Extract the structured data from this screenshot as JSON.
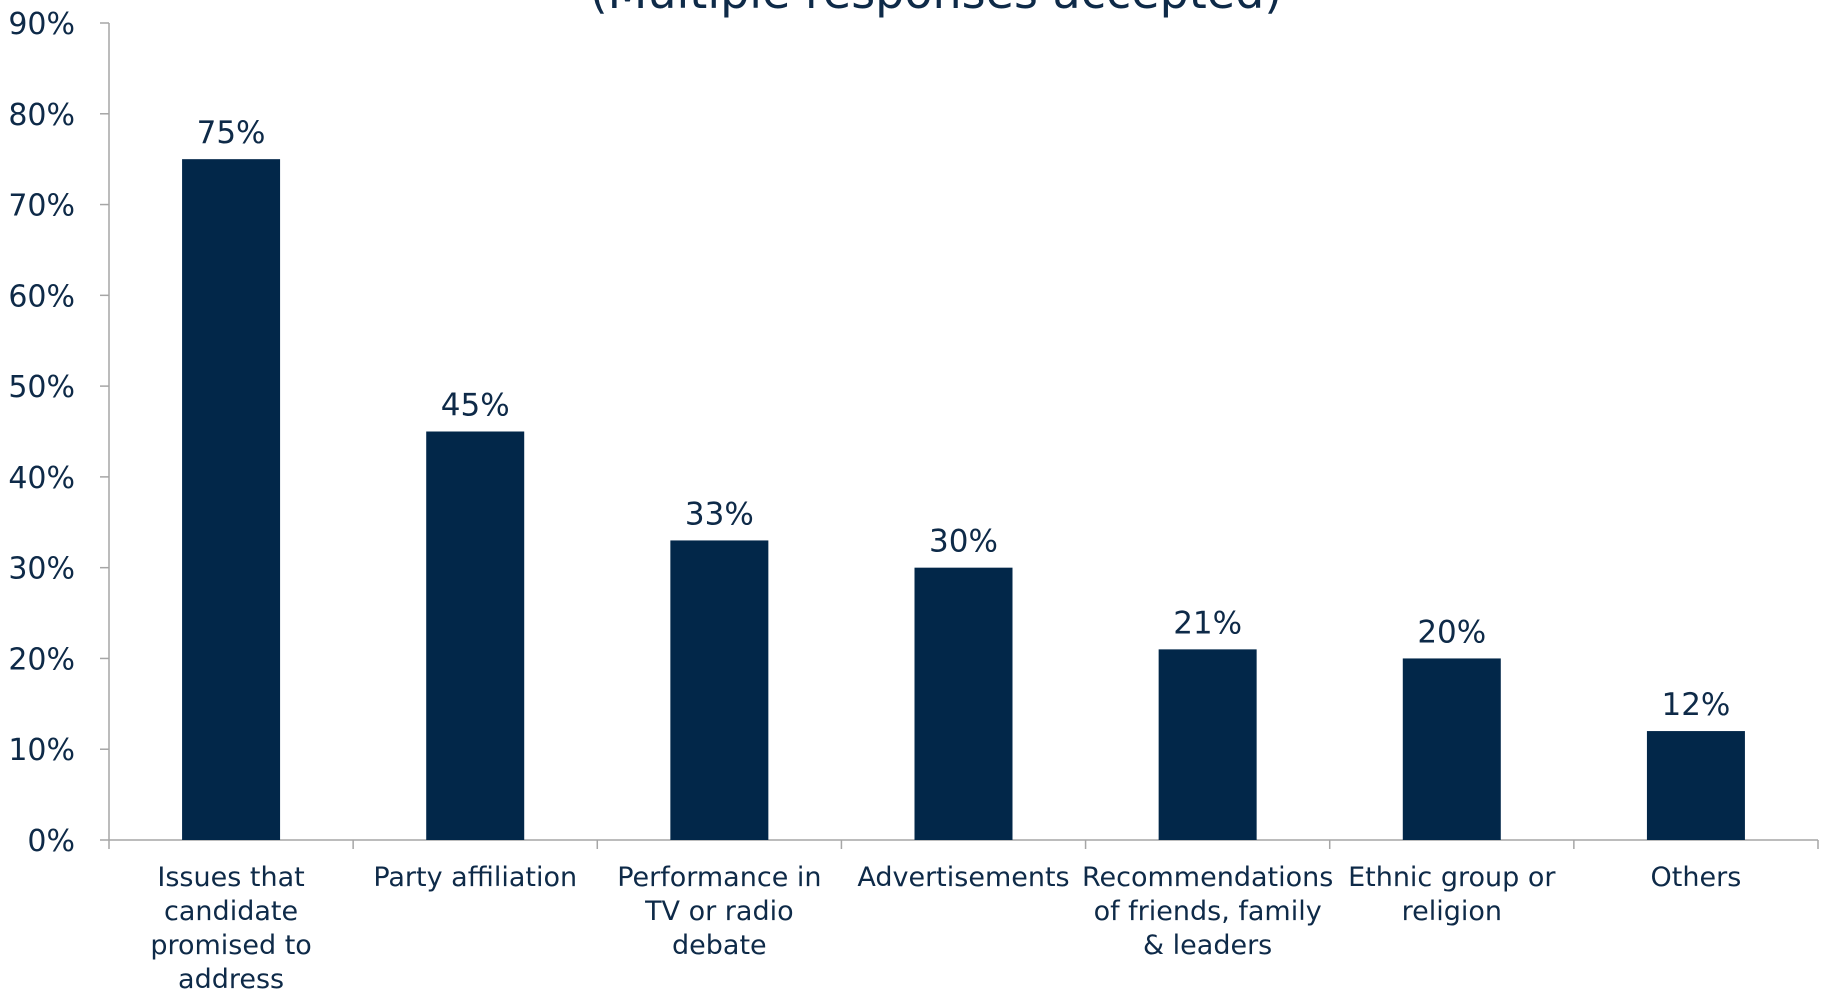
{
  "chart_data": {
    "type": "bar",
    "title": "(Multiple responses accepted)",
    "categories": [
      [
        "Issues that",
        "candidate",
        "promised to",
        "address"
      ],
      [
        "Party affiliation"
      ],
      [
        "Performance in",
        "TV or radio",
        "debate"
      ],
      [
        "Advertisements"
      ],
      [
        "Recommendations",
        "of friends, family",
        "& leaders"
      ],
      [
        "Ethnic group or",
        "religion"
      ],
      [
        "Others"
      ]
    ],
    "values": [
      75,
      45,
      33,
      30,
      21,
      20,
      12
    ],
    "value_labels": [
      "75%",
      "45%",
      "33%",
      "30%",
      "21%",
      "20%",
      "12%"
    ],
    "color": "#022749",
    "ylim": [
      0,
      90
    ],
    "yticks": [
      {
        "value": 0,
        "label": "0%"
      },
      {
        "value": 10,
        "label": "10%"
      },
      {
        "value": 20,
        "label": "20%"
      },
      {
        "value": 30,
        "label": "30%"
      },
      {
        "value": 40,
        "label": "40%"
      },
      {
        "value": 50,
        "label": "50%"
      },
      {
        "value": 60,
        "label": "60%"
      },
      {
        "value": 70,
        "label": "70%"
      },
      {
        "value": 80,
        "label": "80%"
      },
      {
        "value": 90,
        "label": "90%"
      }
    ],
    "grid": false
  }
}
